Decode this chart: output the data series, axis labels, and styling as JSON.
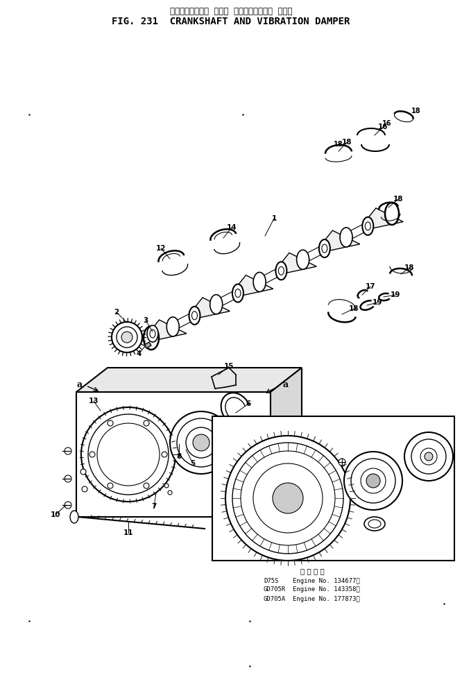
{
  "title_japanese": "クランクシャフト  および  バイブレーション  ダンパ",
  "title_english": "FIG. 231  CRANKSHAFT AND VIBRATION DAMPER",
  "bg_color": "#ffffff",
  "applicability_header": "適 用 号 機",
  "applicability_lines": [
    [
      "D75S",
      "Engine No. 134677～"
    ],
    [
      "GD705R",
      "Engine No. 143358～"
    ],
    [
      "GD705A",
      "Engine No. 177873～"
    ]
  ],
  "fig_width": 6.66,
  "fig_height": 9.83
}
